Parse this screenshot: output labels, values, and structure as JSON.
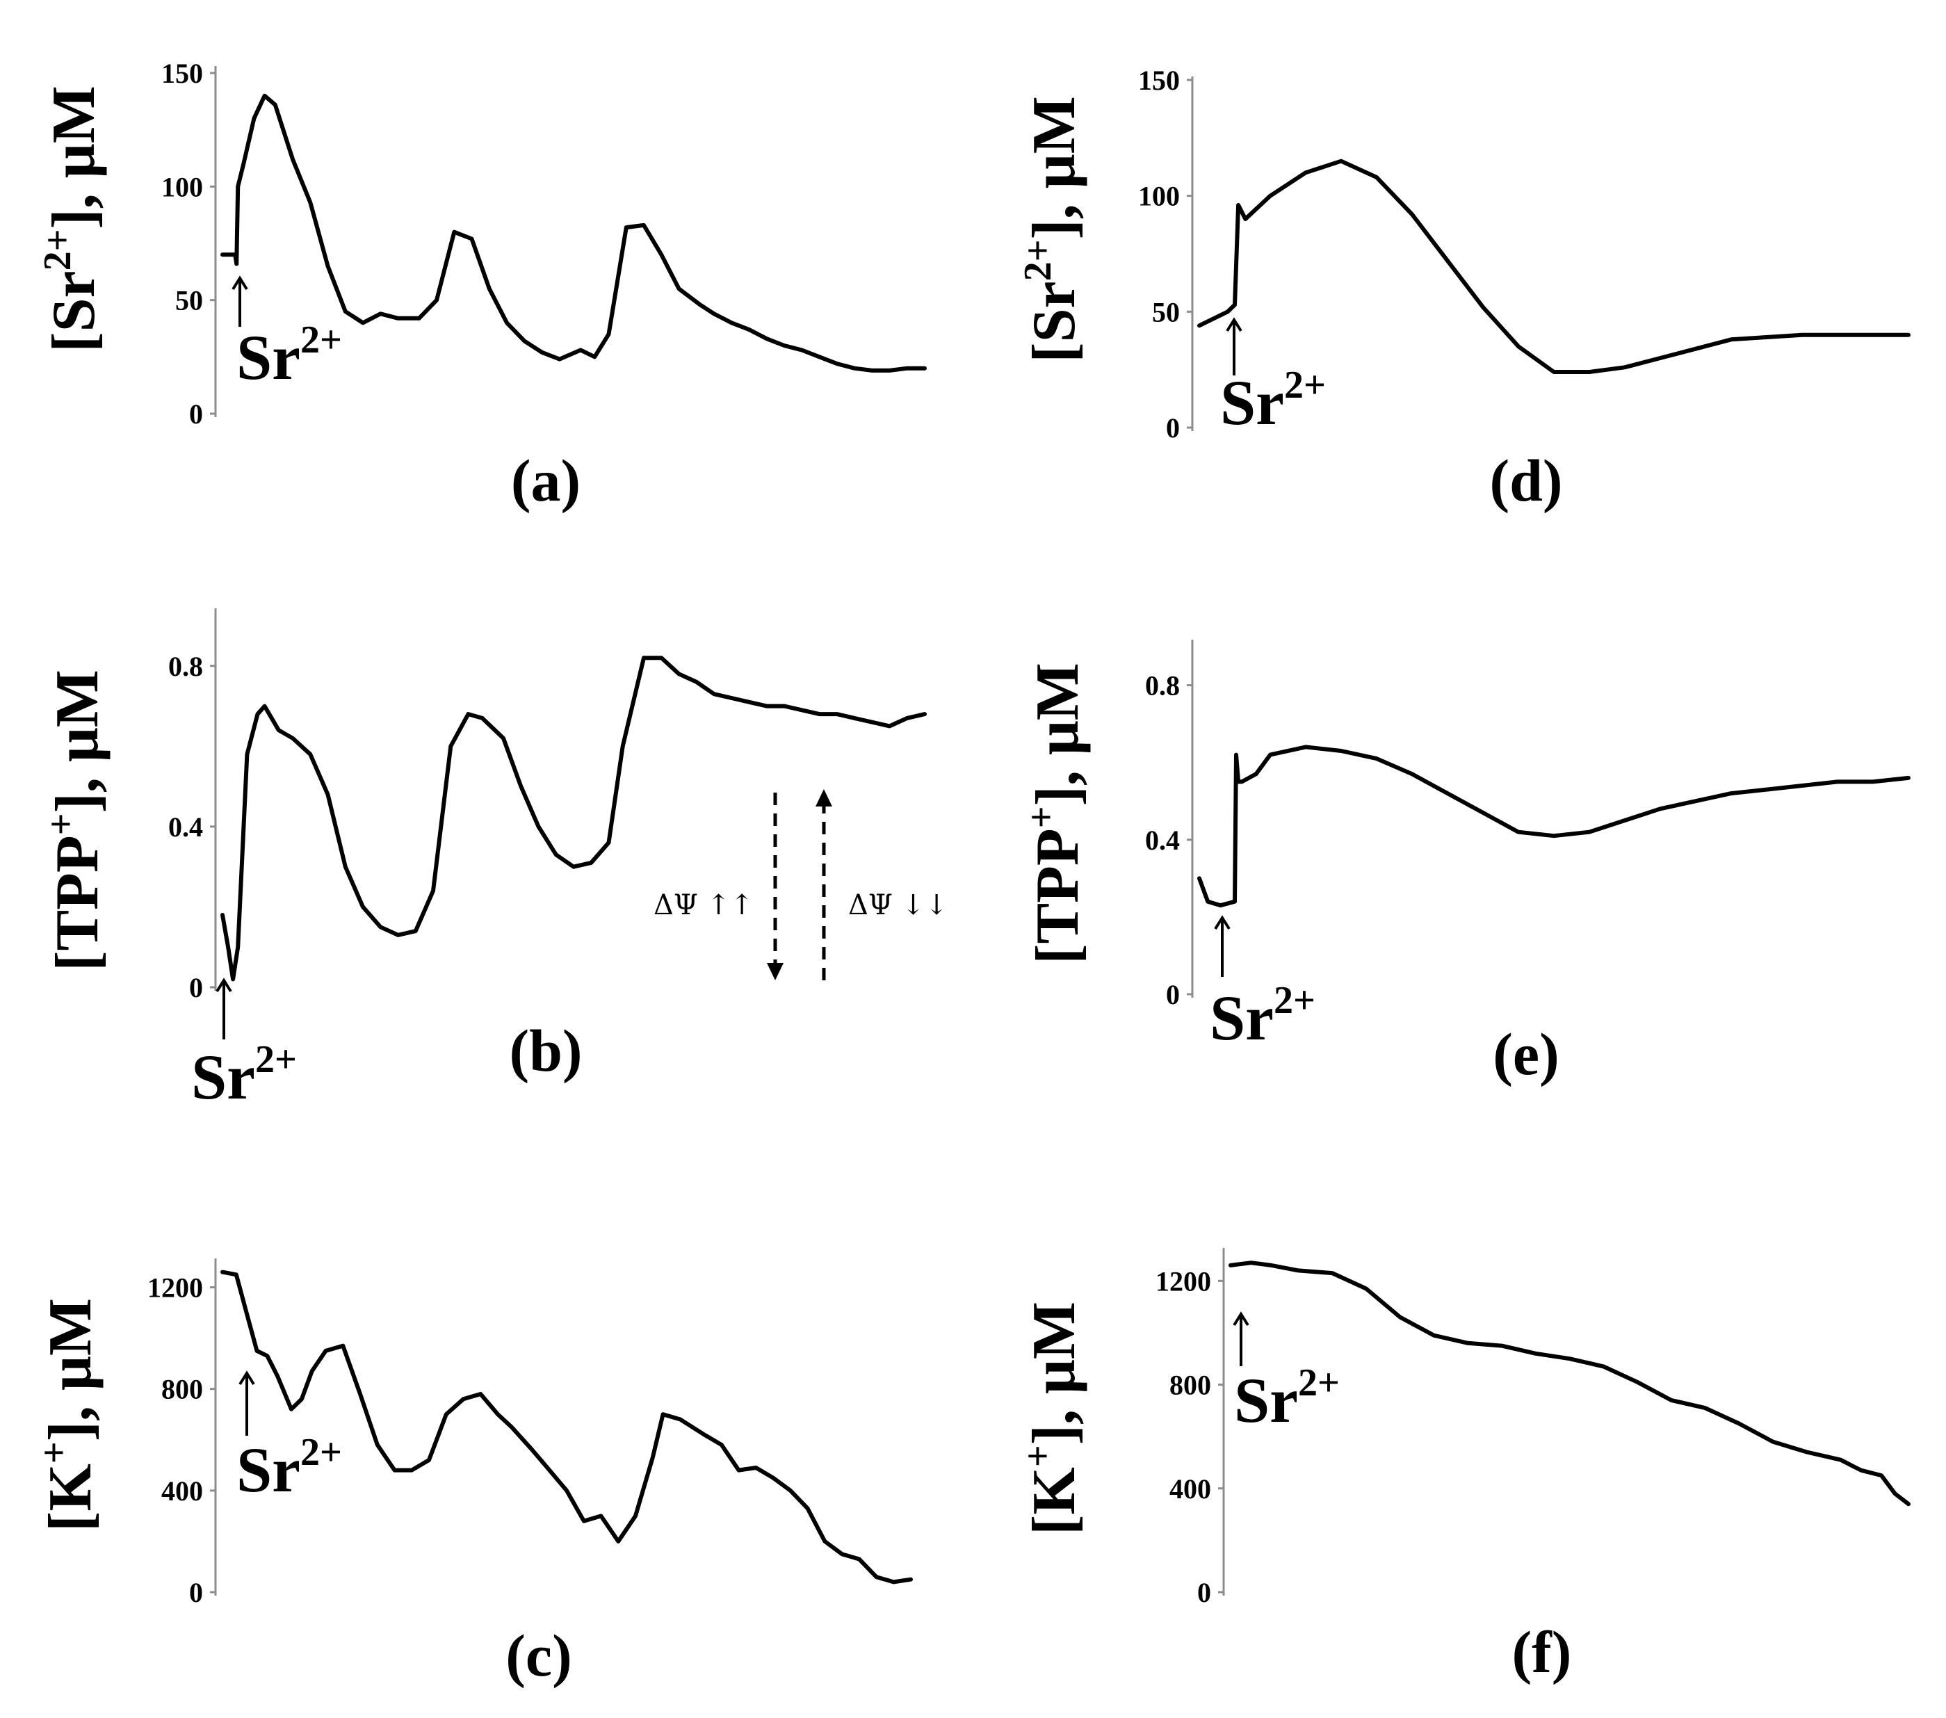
{
  "panels": [
    {
      "id": "a",
      "label": "(a)",
      "ylabel_main": "[Sr",
      "ylabel_sup": "2+",
      "ylabel_tail": "], μM",
      "ticks": [
        "0",
        "50",
        "100",
        "150"
      ],
      "marker_main": "Sr",
      "marker_sup": "2+"
    },
    {
      "id": "b",
      "label": "(b)",
      "ylabel_main": "[TPP",
      "ylabel_sup": "+",
      "ylabel_tail": "], μM",
      "ticks": [
        "0",
        "0.4",
        "0.8"
      ],
      "marker_main": "Sr",
      "marker_sup": "2+",
      "annotation_left": "ΔΨ ↑↑",
      "annotation_right": "ΔΨ ↓↓"
    },
    {
      "id": "c",
      "label": "(c)",
      "ylabel_main": "[K",
      "ylabel_sup": "+",
      "ylabel_tail": "], μM",
      "ticks": [
        "0",
        "400",
        "800",
        "1200"
      ],
      "marker_main": "Sr",
      "marker_sup": "2+"
    },
    {
      "id": "d",
      "label": "(d)",
      "ylabel_main": "[Sr",
      "ylabel_sup": "2+",
      "ylabel_tail": "], μM",
      "ticks": [
        "0",
        "50",
        "100",
        "150"
      ],
      "marker_main": "Sr",
      "marker_sup": "2+"
    },
    {
      "id": "e",
      "label": "(e)",
      "ylabel_main": "[TPP",
      "ylabel_sup": "+",
      "ylabel_tail": "], μM",
      "ticks": [
        "0",
        "0.4",
        "0.8"
      ],
      "marker_main": "Sr",
      "marker_sup": "2+"
    },
    {
      "id": "f",
      "label": "(f)",
      "ylabel_main": "[K",
      "ylabel_sup": "+",
      "ylabel_tail": "], μM",
      "ticks": [
        "0",
        "400",
        "800",
        "1200"
      ],
      "marker_main": "Sr",
      "marker_sup": "2+"
    }
  ],
  "chart_data": [
    {
      "type": "line",
      "panel": "(a)",
      "ylabel": "[Sr2+], μM",
      "ylim": [
        0,
        150
      ],
      "yticks": [
        0,
        50,
        100,
        150
      ],
      "x_ticks_shown": false,
      "x": [
        0,
        0.018,
        0.02,
        0.022,
        0.03,
        0.045,
        0.06,
        0.075,
        0.1,
        0.125,
        0.15,
        0.175,
        0.2,
        0.225,
        0.25,
        0.28,
        0.305,
        0.33,
        0.355,
        0.38,
        0.405,
        0.43,
        0.455,
        0.48,
        0.51,
        0.53,
        0.55,
        0.575,
        0.6,
        0.625,
        0.65,
        0.68,
        0.7,
        0.725,
        0.75,
        0.775,
        0.8,
        0.825,
        0.85,
        0.875,
        0.9,
        0.925,
        0.95,
        0.975,
        1.0
      ],
      "y": [
        70,
        70,
        66,
        100,
        110,
        130,
        140,
        136,
        112,
        93,
        65,
        45,
        40,
        44,
        42,
        42,
        50,
        80,
        77,
        55,
        40,
        32,
        27,
        24,
        28,
        25,
        35,
        82,
        83,
        70,
        55,
        48,
        44,
        40,
        37,
        33,
        30,
        28,
        25,
        22,
        20,
        19,
        19,
        20,
        20
      ]
    },
    {
      "type": "line",
      "panel": "(b)",
      "ylabel": "[TPP+], μM",
      "ylim": [
        0,
        0.9
      ],
      "yticks": [
        0,
        0.4,
        0.8
      ],
      "x_ticks_shown": false,
      "x": [
        0,
        0.008,
        0.015,
        0.022,
        0.035,
        0.05,
        0.06,
        0.08,
        0.1,
        0.125,
        0.15,
        0.175,
        0.2,
        0.225,
        0.25,
        0.275,
        0.3,
        0.325,
        0.35,
        0.37,
        0.4,
        0.425,
        0.45,
        0.475,
        0.5,
        0.525,
        0.55,
        0.57,
        0.6,
        0.625,
        0.65,
        0.675,
        0.7,
        0.725,
        0.75,
        0.775,
        0.8,
        0.825,
        0.85,
        0.875,
        0.9,
        0.925,
        0.95,
        0.975,
        1.0
      ],
      "y": [
        0.18,
        0.1,
        0.02,
        0.1,
        0.58,
        0.68,
        0.7,
        0.64,
        0.62,
        0.58,
        0.48,
        0.3,
        0.2,
        0.15,
        0.13,
        0.14,
        0.24,
        0.6,
        0.68,
        0.67,
        0.62,
        0.5,
        0.4,
        0.33,
        0.3,
        0.31,
        0.36,
        0.6,
        0.82,
        0.82,
        0.78,
        0.76,
        0.73,
        0.72,
        0.71,
        0.7,
        0.7,
        0.69,
        0.68,
        0.68,
        0.67,
        0.66,
        0.65,
        0.67,
        0.68
      ]
    },
    {
      "type": "line",
      "panel": "(c)",
      "ylabel": "[K+], μM",
      "ylim": [
        0,
        1300
      ],
      "yticks": [
        0,
        400,
        800,
        1200
      ],
      "x_ticks_shown": false,
      "x": [
        0,
        0.02,
        0.035,
        0.05,
        0.065,
        0.08,
        0.1,
        0.115,
        0.13,
        0.15,
        0.175,
        0.2,
        0.21,
        0.225,
        0.25,
        0.275,
        0.3,
        0.325,
        0.35,
        0.375,
        0.4,
        0.42,
        0.45,
        0.475,
        0.5,
        0.525,
        0.55,
        0.575,
        0.6,
        0.625,
        0.64,
        0.665,
        0.7,
        0.725,
        0.75,
        0.775,
        0.8,
        0.825,
        0.85,
        0.875,
        0.9,
        0.925,
        0.95,
        0.975,
        1.0
      ],
      "y": [
        1260,
        1250,
        1100,
        950,
        930,
        850,
        720,
        760,
        870,
        950,
        970,
        780,
        700,
        580,
        480,
        480,
        520,
        700,
        760,
        780,
        700,
        650,
        560,
        480,
        400,
        280,
        300,
        200,
        300,
        530,
        700,
        680,
        620,
        580,
        480,
        490,
        450,
        400,
        330,
        200,
        150,
        130,
        60,
        40,
        50
      ]
    },
    {
      "type": "line",
      "panel": "(d)",
      "ylabel": "[Sr2+], μM",
      "ylim": [
        0,
        150
      ],
      "yticks": [
        0,
        50,
        100,
        150
      ],
      "x_ticks_shown": false,
      "x": [
        0,
        0.04,
        0.05,
        0.055,
        0.065,
        0.1,
        0.15,
        0.2,
        0.25,
        0.3,
        0.35,
        0.4,
        0.45,
        0.5,
        0.55,
        0.6,
        0.65,
        0.7,
        0.75,
        0.8,
        0.85,
        0.9,
        0.95,
        1.0
      ],
      "y": [
        44,
        50,
        53,
        96,
        90,
        100,
        110,
        115,
        108,
        92,
        72,
        52,
        35,
        24,
        24,
        26,
        30,
        34,
        38,
        39,
        40,
        40,
        40,
        40
      ]
    },
    {
      "type": "line",
      "panel": "(e)",
      "ylabel": "[TPP+], μM",
      "ylim": [
        0,
        0.9
      ],
      "yticks": [
        0,
        0.4,
        0.8
      ],
      "x_ticks_shown": false,
      "x": [
        0,
        0.012,
        0.03,
        0.05,
        0.052,
        0.055,
        0.06,
        0.08,
        0.1,
        0.15,
        0.2,
        0.25,
        0.3,
        0.35,
        0.4,
        0.45,
        0.5,
        0.55,
        0.6,
        0.65,
        0.7,
        0.75,
        0.8,
        0.85,
        0.9,
        0.95,
        1.0
      ],
      "y": [
        0.3,
        0.24,
        0.23,
        0.24,
        0.62,
        0.55,
        0.55,
        0.57,
        0.62,
        0.64,
        0.63,
        0.61,
        0.57,
        0.52,
        0.47,
        0.42,
        0.41,
        0.42,
        0.45,
        0.48,
        0.5,
        0.52,
        0.53,
        0.54,
        0.55,
        0.55,
        0.56
      ]
    },
    {
      "type": "line",
      "panel": "(f)",
      "ylabel": "[K+], μM",
      "ylim": [
        0,
        1300
      ],
      "yticks": [
        0,
        400,
        800,
        1200
      ],
      "x_ticks_shown": false,
      "x": [
        0,
        0.03,
        0.06,
        0.1,
        0.15,
        0.2,
        0.25,
        0.3,
        0.35,
        0.4,
        0.45,
        0.5,
        0.55,
        0.6,
        0.65,
        0.7,
        0.75,
        0.8,
        0.85,
        0.9,
        0.93,
        0.96,
        0.98,
        1.0
      ],
      "y": [
        1260,
        1270,
        1260,
        1240,
        1230,
        1170,
        1060,
        990,
        960,
        950,
        920,
        900,
        870,
        810,
        740,
        710,
        650,
        580,
        540,
        510,
        470,
        450,
        380,
        340
      ]
    }
  ]
}
